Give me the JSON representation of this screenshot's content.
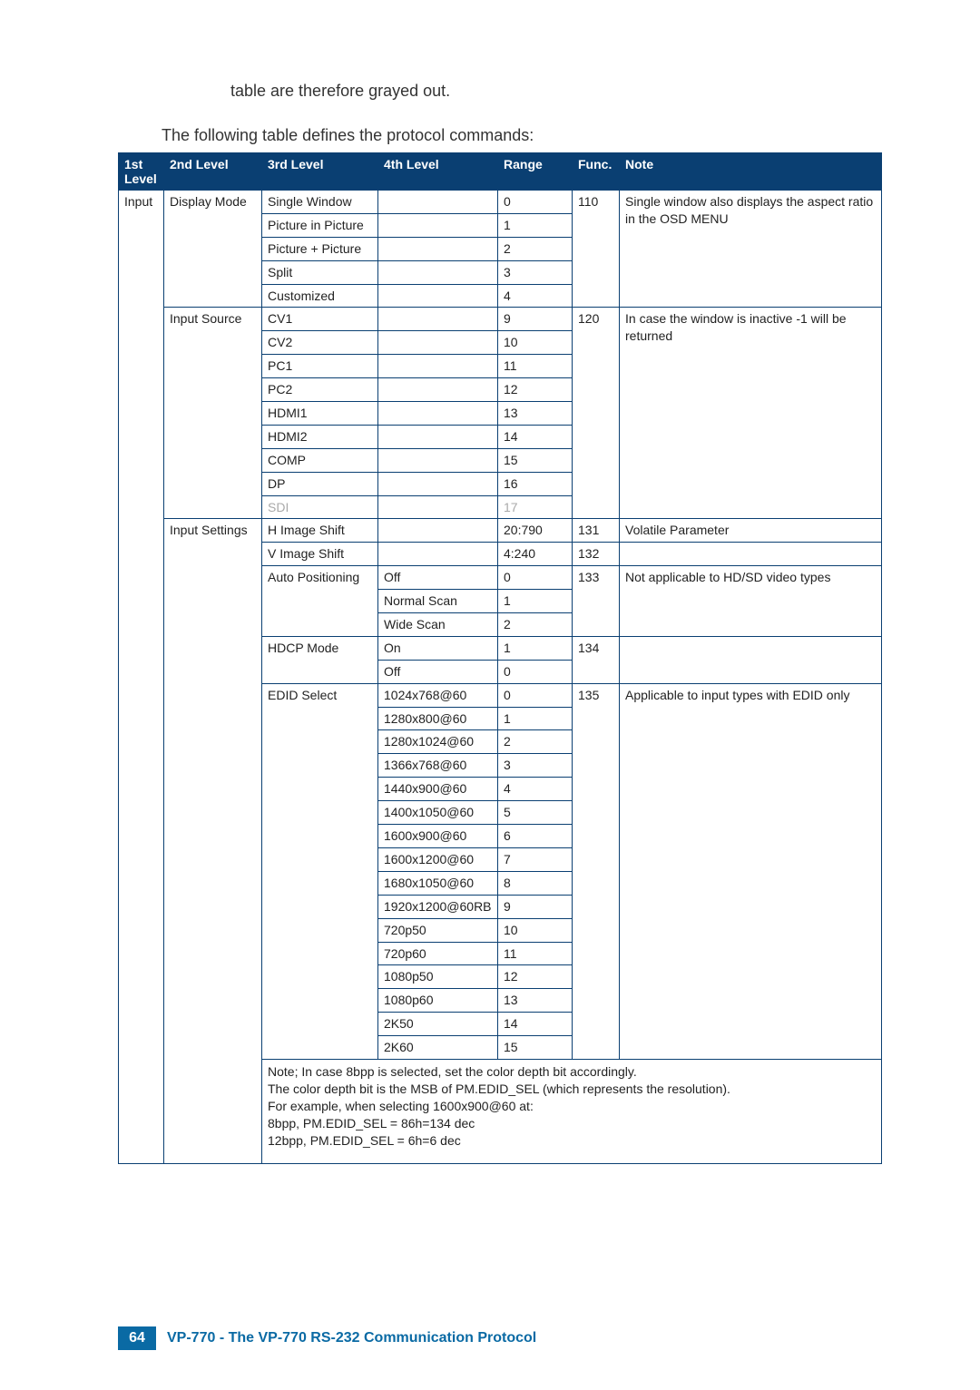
{
  "intro1": "table are therefore grayed out.",
  "intro2": "The following table defines the protocol commands:",
  "cols": {
    "c1": "1st Level",
    "c2": "2nd Level",
    "c3": "3rd Level",
    "c4": "4th Level",
    "c5": "Range",
    "c6": "Func.",
    "c7": "Note"
  },
  "l1_input": "Input",
  "l2_display_mode": "Display Mode",
  "l2_input_source": "Input Source",
  "l2_input_settings": "Input Settings",
  "dm": {
    "single": "Single Window",
    "single_r": "0",
    "pip": "Picture in Picture",
    "pip_r": "1",
    "pp": "Picture + Picture",
    "pp_r": "2",
    "split": "Split",
    "split_r": "3",
    "custom": "Customized",
    "custom_r": "4",
    "func": "110",
    "note": "Single window also displays the aspect ratio in the OSD MENU"
  },
  "is": {
    "cv1": "CV1",
    "cv1_r": "9",
    "cv2": "CV2",
    "cv2_r": "10",
    "pc1": "PC1",
    "pc1_r": "11",
    "pc2": "PC2",
    "pc2_r": "12",
    "h1": "HDMI1",
    "h1_r": "13",
    "h2": "HDMI2",
    "h2_r": "14",
    "comp": "COMP",
    "comp_r": "15",
    "dp": "DP",
    "dp_r": "16",
    "sdi": "SDI",
    "sdi_r": "17",
    "func": "120",
    "note": "In case the window is inactive -1 will be returned"
  },
  "set": {
    "hshift": "H Image Shift",
    "hshift_r": "20:790",
    "hshift_f": "131",
    "hshift_n": "Volatile Parameter",
    "vshift": "V Image Shift",
    "vshift_r": "4:240",
    "vshift_f": "132",
    "auto": "Auto Positioning",
    "auto_off": "Off",
    "auto_off_r": "0",
    "auto_norm": "Normal Scan",
    "auto_norm_r": "1",
    "auto_wide": "Wide Scan",
    "auto_wide_r": "2",
    "auto_f": "133",
    "auto_n": "Not applicable to HD/SD video types",
    "hdcp": "HDCP Mode",
    "hdcp_on": "On",
    "hdcp_on_r": "1",
    "hdcp_off": "Off",
    "hdcp_off_r": "0",
    "hdcp_f": "134",
    "edid": "EDID Select",
    "e0": "1024x768@60",
    "e0_r": "0",
    "e1": "1280x800@60",
    "e1_r": "1",
    "e2": "1280x1024@60",
    "e2_r": "2",
    "e3": "1366x768@60",
    "e3_r": "3",
    "e4": "1440x900@60",
    "e4_r": "4",
    "e5": "1400x1050@60",
    "e5_r": "5",
    "e6": "1600x900@60",
    "e6_r": "6",
    "e7": "1600x1200@60",
    "e7_r": "7",
    "e8": "1680x1050@60",
    "e8_r": "8",
    "e9": "1920x1200@60RB",
    "e9_r": "9",
    "e10": "720p50",
    "e10_r": "10",
    "e11": "720p60",
    "e11_r": "11",
    "e12": "1080p50",
    "e12_r": "12",
    "e13": "1080p60",
    "e13_r": "13",
    "e14": "2K50",
    "e14_r": "14",
    "e15": "2K60",
    "e15_r": "15",
    "edid_f": "135",
    "edid_n": "Applicable to input types with EDID only"
  },
  "footnote": {
    "l1": "Note; In case 8bpp is selected, set the color depth bit accordingly.",
    "l2": "The color depth bit is the MSB of PM.EDID_SEL (which represents the resolution).",
    "l3": "For example, when selecting 1600x900@60 at:",
    "l4": "8bpp, PM.EDID_SEL = 86h=134 dec",
    "l5": "12bpp, PM.EDID_SEL = 6h=6 dec"
  },
  "page_number": "64",
  "footer_text": "VP-770 - The VP-770 RS-232 Communication Protocol"
}
